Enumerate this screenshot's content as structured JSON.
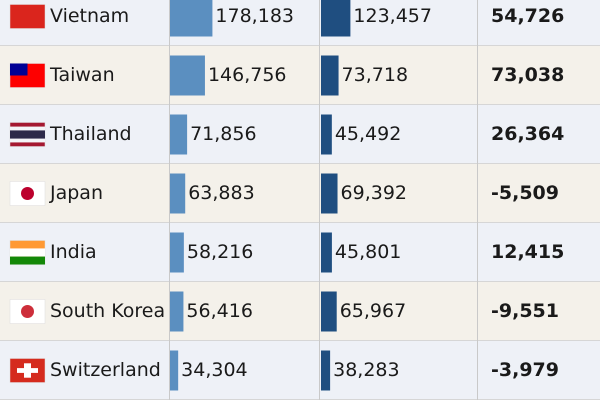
{
  "table": {
    "rows": [
      [
        "Vietnam",
        {
          "value": 178183,
          "label": "178,183"
        },
        {
          "value": 123457,
          "label": "123,457"
        },
        {
          "value": 54726,
          "label": "54,726"
        }
      ],
      [
        "Taiwan",
        {
          "value": 146756,
          "label": "146,756"
        },
        {
          "value": 73718,
          "label": "73,718"
        },
        {
          "value": 73038,
          "label": "73,038"
        }
      ],
      [
        "Thailand",
        {
          "value": 71856,
          "label": "71,856"
        },
        {
          "value": 45492,
          "label": "45,492"
        },
        {
          "value": 26364,
          "label": "26,364"
        }
      ],
      [
        "Japan",
        {
          "value": 63883,
          "label": "63,883"
        },
        {
          "value": 69392,
          "label": "69,392"
        },
        {
          "value": -5509,
          "label": "-5,509"
        }
      ],
      [
        "India",
        {
          "value": 58216,
          "label": "58,216"
        },
        {
          "value": 45801,
          "label": "45,801"
        },
        {
          "value": 12415,
          "label": "12,415"
        }
      ],
      [
        "South Korea",
        {
          "value": 56416,
          "label": "56,416"
        },
        {
          "value": 65967,
          "label": "65,967"
        },
        {
          "value": -9551,
          "label": "-9,551"
        }
      ],
      [
        "Switzerland",
        {
          "value": 34304,
          "label": "34,304"
        },
        {
          "value": 38283,
          "label": "38,283"
        },
        {
          "value": -3979,
          "label": "-3,979"
        }
      ]
    ]
  }
}
